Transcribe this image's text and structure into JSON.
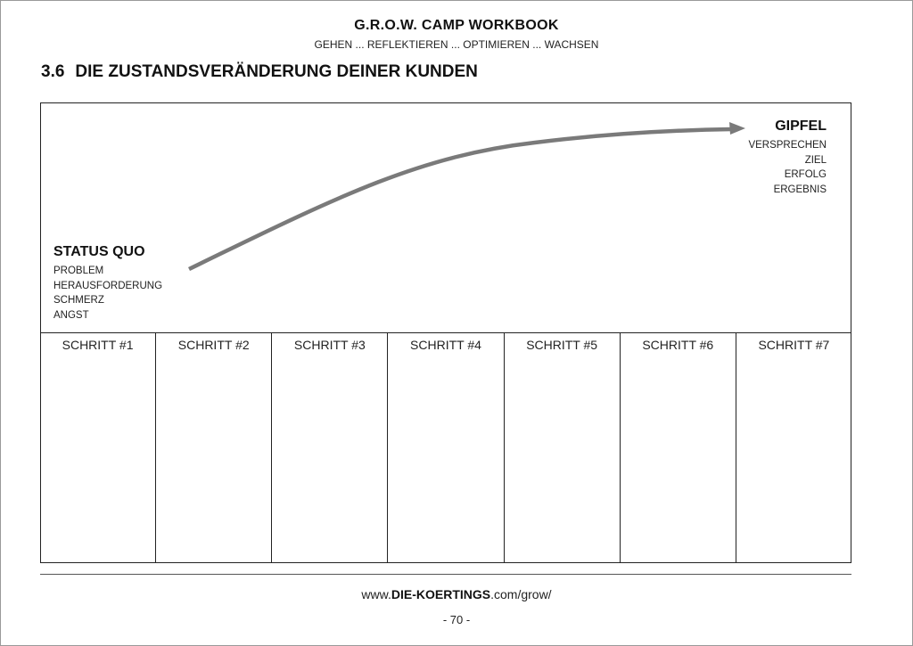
{
  "header": {
    "title": "G.R.O.W. CAMP WORKBOOK",
    "subtitle": "GEHEN ... REFLEKTIEREN ... OPTIMIEREN ... WACHSEN"
  },
  "section": {
    "number": "3.6",
    "title": "DIE ZUSTANDSVERÄNDERUNG DEINER KUNDEN"
  },
  "diagram": {
    "start": {
      "title": "STATUS QUO",
      "items": [
        "PROBLEM",
        "HERAUSFORDERUNG",
        "SCHMERZ",
        "ANGST"
      ]
    },
    "end": {
      "title": "GIPFEL",
      "items": [
        "VERSPRECHEN",
        "ZIEL",
        "ERFOLG",
        "ERGEBNIS"
      ]
    },
    "arrow_color": "#7a7a7a",
    "steps": [
      "SCHRITT #1",
      "SCHRITT #2",
      "SCHRITT #3",
      "SCHRITT #4",
      "SCHRITT #5",
      "SCHRITT #6",
      "SCHRITT #7"
    ]
  },
  "footer": {
    "url_prefix": "www.",
    "url_brand": "DIE-KOERTINGS",
    "url_suffix": ".com/grow/",
    "page": "- 70 -"
  }
}
